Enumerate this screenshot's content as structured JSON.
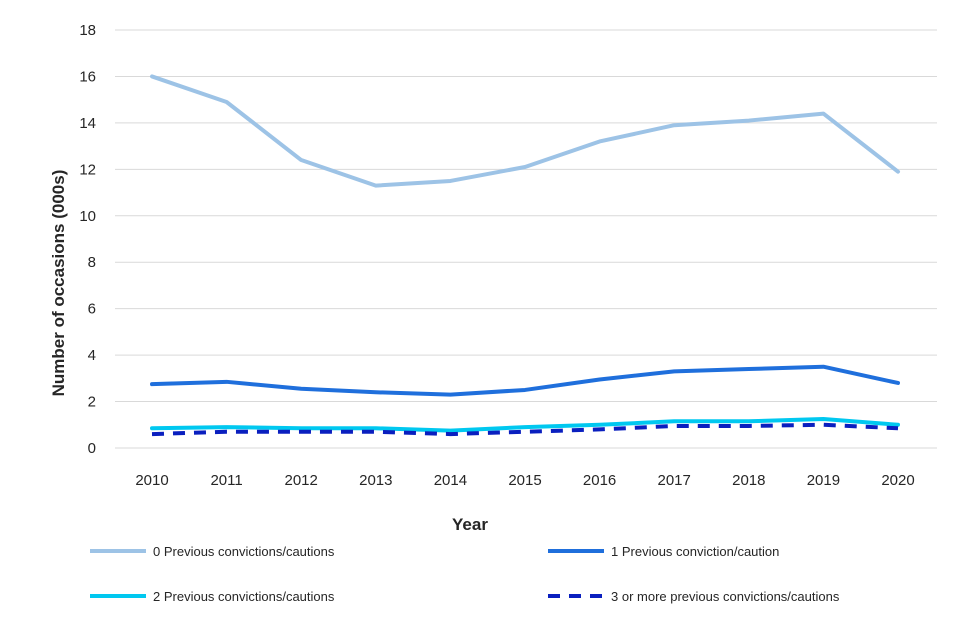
{
  "chart_data": {
    "type": "line",
    "title": "",
    "xlabel": "Year",
    "ylabel": "Number of occasions  (000s)",
    "categories": [
      "2010",
      "2011",
      "2012",
      "2013",
      "2014",
      "2015",
      "2016",
      "2017",
      "2018",
      "2019",
      "2020"
    ],
    "ylim": [
      0,
      18
    ],
    "yticks": [
      "0",
      "2",
      "4",
      "6",
      "8",
      "10",
      "12",
      "14",
      "16",
      "18"
    ],
    "grid": true,
    "legend_position": "bottom",
    "series": [
      {
        "name": "0 Previous convictions/cautions",
        "color": "#9dc3e6",
        "dash": "solid",
        "values": [
          16.0,
          14.9,
          12.4,
          11.3,
          11.5,
          12.1,
          13.2,
          13.9,
          14.1,
          14.4,
          11.9
        ]
      },
      {
        "name": "1 Previous conviction/caution",
        "color": "#1f6fdc",
        "dash": "solid",
        "values": [
          2.75,
          2.85,
          2.55,
          2.4,
          2.3,
          2.5,
          2.95,
          3.3,
          3.4,
          3.5,
          2.8
        ]
      },
      {
        "name": "2 Previous convictions/cautions",
        "color": "#00c8f0",
        "dash": "solid",
        "values": [
          0.85,
          0.9,
          0.85,
          0.85,
          0.75,
          0.9,
          1.0,
          1.15,
          1.15,
          1.25,
          1.0
        ]
      },
      {
        "name": "3 or more previous convictions/cautions",
        "color": "#0a1fbf",
        "dash": "dashed",
        "values": [
          0.6,
          0.7,
          0.7,
          0.7,
          0.6,
          0.7,
          0.8,
          0.95,
          0.95,
          1.0,
          0.85
        ]
      }
    ]
  }
}
